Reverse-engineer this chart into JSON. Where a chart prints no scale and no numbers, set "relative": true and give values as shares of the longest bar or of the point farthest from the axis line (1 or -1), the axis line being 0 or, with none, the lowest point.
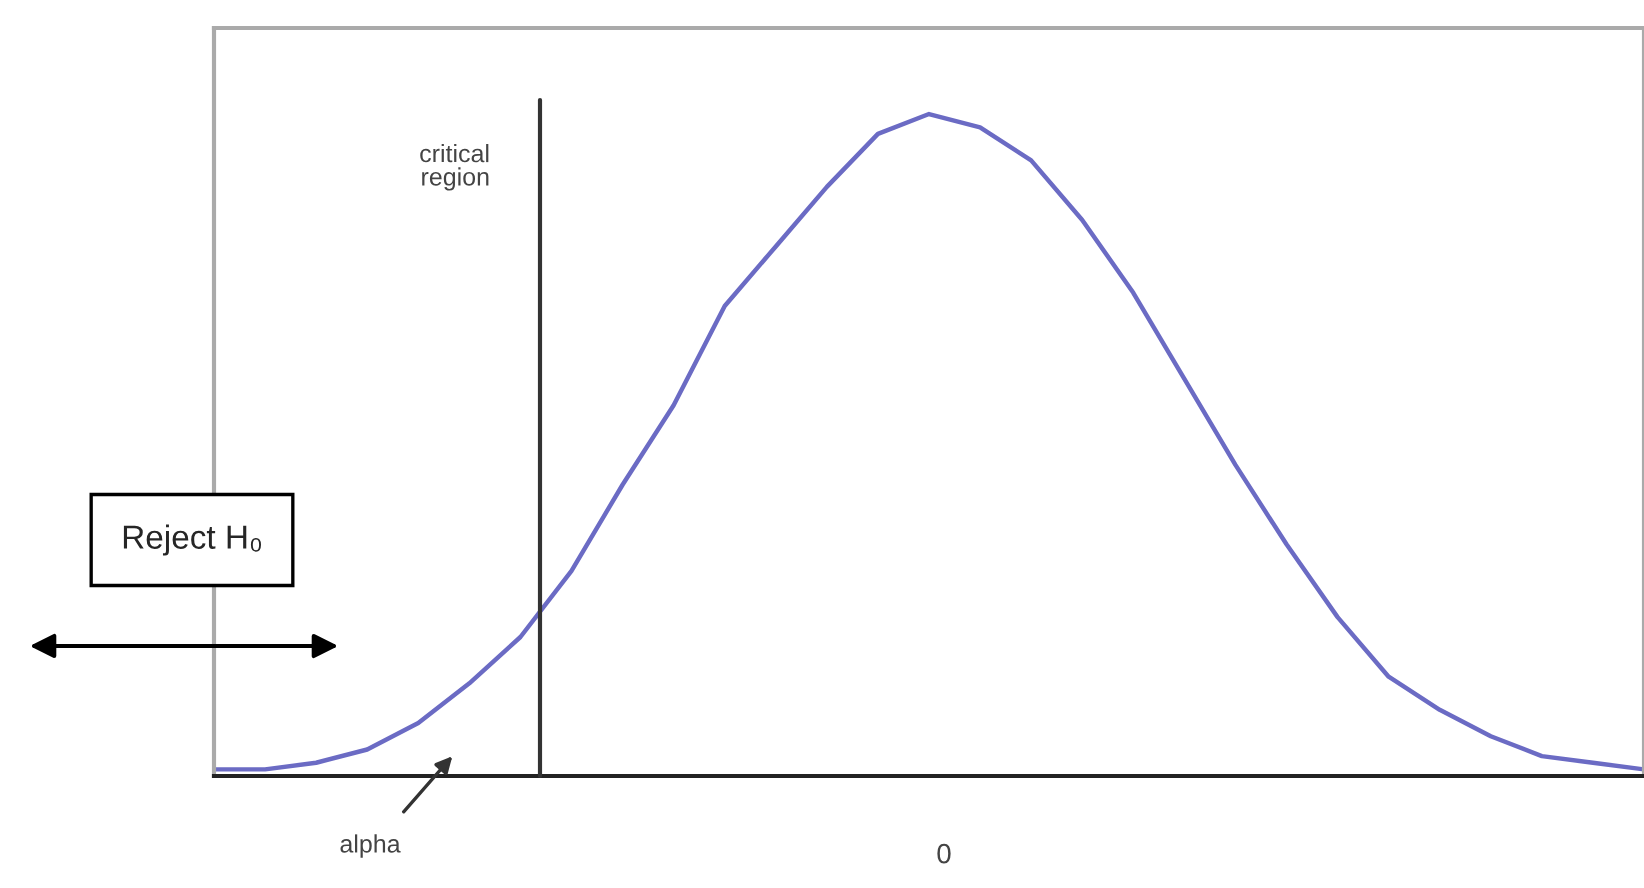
{
  "chart_data": {
    "type": "line",
    "relative": true,
    "categories": [
      null,
      null,
      null,
      null,
      null,
      null,
      null,
      null,
      null,
      null,
      null,
      null,
      null,
      null,
      null,
      null,
      null,
      null,
      null,
      null,
      null,
      null,
      null,
      null,
      null,
      null,
      null,
      null,
      null
    ],
    "series": [
      {
        "color": "#6b6bc4",
        "values": [
          0.01,
          0.01,
          0.02,
          0.04,
          0.08,
          0.14,
          0.21,
          0.31,
          0.44,
          0.56,
          0.71,
          0.8,
          0.89,
          0.97,
          1.0,
          0.98,
          0.93,
          0.84,
          0.73,
          0.6,
          0.47,
          0.35,
          0.24,
          0.15,
          0.1,
          0.06,
          0.03,
          0.02,
          0.01
        ]
      }
    ],
    "annotations": [
      "critical\nregion",
      "alpha",
      "Reject H₀",
      "0"
    ],
    "grid": false,
    "legend": false,
    "marker": "none",
    "line_style": "solid"
  }
}
